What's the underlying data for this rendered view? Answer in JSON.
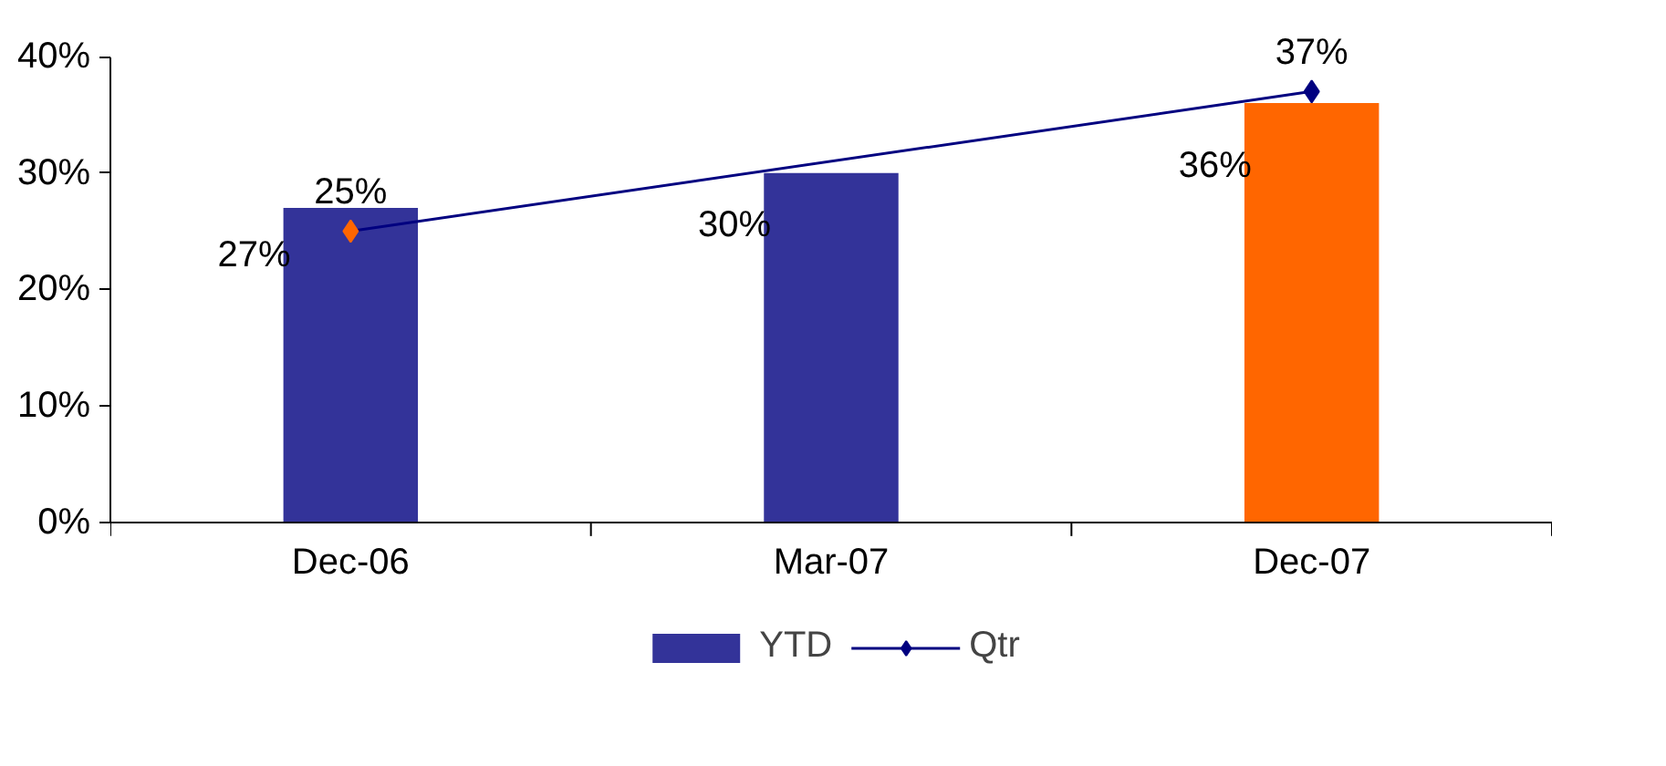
{
  "chart_data": {
    "type": "bar",
    "categories": [
      "Dec-06",
      "Mar-07",
      "Dec-07"
    ],
    "ylim": [
      0,
      40
    ],
    "yticks": [
      {
        "value": 0,
        "label": "0%"
      },
      {
        "value": 10,
        "label": "10%"
      },
      {
        "value": 20,
        "label": "20%"
      },
      {
        "value": 30,
        "label": "30%"
      },
      {
        "value": 40,
        "label": "40%"
      }
    ],
    "grid": false,
    "legend": "bottom",
    "series": [
      {
        "name": "YTD",
        "color": "#333399",
        "colors": [
          "#333399",
          "#333399",
          "#ff6600"
        ],
        "values": [
          27,
          30,
          36
        ],
        "value_labels": [
          "27%",
          "30%",
          "36%"
        ]
      },
      {
        "name": "Qtr",
        "type": "line",
        "color": "#000080",
        "colors": [
          "#ff6600",
          "#000080"
        ],
        "marker": "diamond",
        "x": [
          "Dec-06",
          "Dec-07"
        ],
        "values": [
          25,
          37
        ],
        "value_labels": [
          "25%",
          "37%"
        ]
      }
    ]
  }
}
